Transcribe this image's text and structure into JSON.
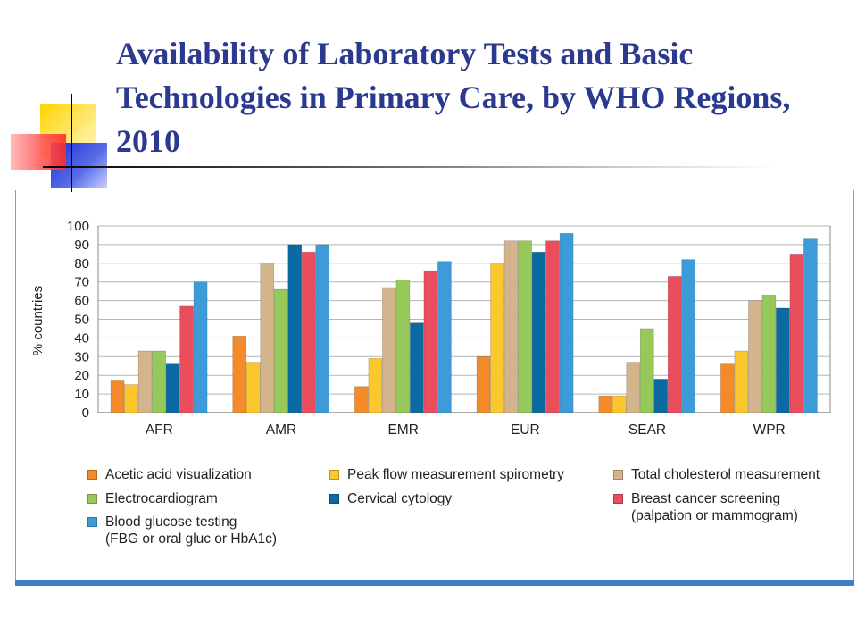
{
  "slide": {
    "title": "Availability of Laboratory Tests and Basic Technologies in Primary Care, by WHO Regions, 2010"
  },
  "chart_data": {
    "type": "bar",
    "ylabel": "% countries",
    "ylim": [
      0,
      100
    ],
    "yticks": [
      0,
      10,
      20,
      30,
      40,
      50,
      60,
      70,
      80,
      90,
      100
    ],
    "grid": true,
    "legend_position": "bottom",
    "categories": [
      "AFR",
      "AMR",
      "EMR",
      "EUR",
      "SEAR",
      "WPR"
    ],
    "series": [
      {
        "name": "Acetic acid visualization",
        "color": "#f58a2b",
        "values": [
          17,
          41,
          14,
          30,
          9,
          26
        ]
      },
      {
        "name": "Peak flow measurement spirometry",
        "color": "#fcc72c",
        "values": [
          15,
          27,
          29,
          80,
          9,
          33
        ]
      },
      {
        "name": "Total cholesterol measurement",
        "color": "#d4b48c",
        "values": [
          33,
          80,
          67,
          92,
          27,
          60
        ]
      },
      {
        "name": "Electrocardiogram",
        "color": "#96c95a",
        "values": [
          33,
          66,
          71,
          92,
          45,
          63
        ]
      },
      {
        "name": "Cervical cytology",
        "color": "#0b6aa2",
        "values": [
          26,
          90,
          48,
          86,
          18,
          56
        ]
      },
      {
        "name": "Breast cancer screening",
        "name_line2": "(palpation or mammogram)",
        "color": "#ea4d5c",
        "values": [
          57,
          86,
          76,
          92,
          73,
          85
        ]
      },
      {
        "name": "Blood glucose testing",
        "name_line2": "(FBG or oral gluc or HbA1c)",
        "color": "#3d9bd8",
        "values": [
          70,
          90,
          81,
          96,
          82,
          93
        ]
      }
    ]
  }
}
